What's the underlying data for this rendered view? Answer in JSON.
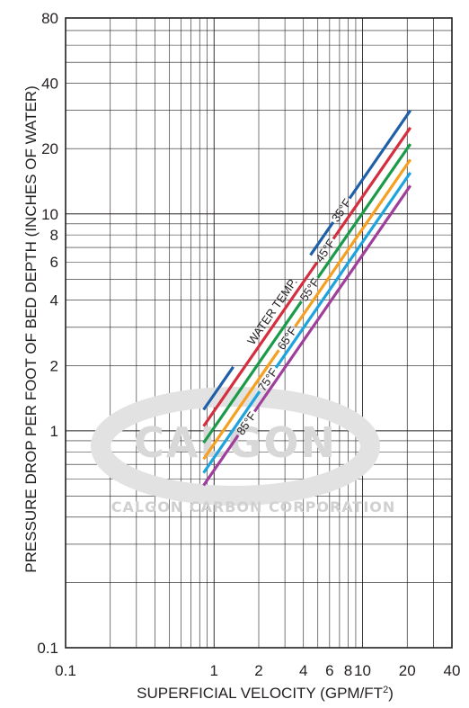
{
  "chart_data": {
    "type": "line",
    "title": "",
    "xlabel_main": "SUPERFICIAL VELOCITY (GPM/FT",
    "xlabel_sup": "2",
    "xlabel_close": ")",
    "ylabel": "PRESSURE DROP PER FOOT OF BED DEPTH (INCHES OF WATER)",
    "x_scale": "log",
    "y_scale": "log",
    "xlim": [
      0.1,
      40
    ],
    "ylim": [
      0.1,
      80
    ],
    "x_tick_labels": [
      {
        "value": 0.1,
        "label": "0.1"
      },
      {
        "value": 1,
        "label": "1"
      },
      {
        "value": 2,
        "label": "2"
      },
      {
        "value": 4,
        "label": "4"
      },
      {
        "value": 6,
        "label": "6"
      },
      {
        "value": 8,
        "label": "8"
      },
      {
        "value": 10,
        "label": "10"
      },
      {
        "value": 20,
        "label": "20"
      },
      {
        "value": 40,
        "label": "40"
      }
    ],
    "y_tick_labels": [
      {
        "value": 0.1,
        "label": "0.1"
      },
      {
        "value": 1,
        "label": "1"
      },
      {
        "value": 2,
        "label": "2"
      },
      {
        "value": 4,
        "label": "4"
      },
      {
        "value": 6,
        "label": "6"
      },
      {
        "value": 8,
        "label": "8"
      },
      {
        "value": 10,
        "label": "10"
      },
      {
        "value": 20,
        "label": "20"
      },
      {
        "value": 40,
        "label": "40"
      },
      {
        "value": 80,
        "label": "80"
      }
    ],
    "grid": true,
    "annotation": "WATER TEMP.",
    "series": [
      {
        "name": "35°F",
        "color": "#1f5fa8",
        "x": [
          0.85,
          21
        ],
        "y": [
          1.25,
          30
        ]
      },
      {
        "name": "45°F",
        "color": "#d42e3f",
        "x": [
          0.85,
          21
        ],
        "y": [
          1.05,
          25
        ]
      },
      {
        "name": "55°F",
        "color": "#1b9b4a",
        "x": [
          0.85,
          21
        ],
        "y": [
          0.88,
          21
        ]
      },
      {
        "name": "65°F",
        "color": "#f5a020",
        "x": [
          0.85,
          21
        ],
        "y": [
          0.74,
          17.8
        ]
      },
      {
        "name": "75°F",
        "color": "#1ea3dc",
        "x": [
          0.85,
          21
        ],
        "y": [
          0.64,
          15.5
        ]
      },
      {
        "name": "85°F",
        "color": "#9e3f9c",
        "x": [
          0.85,
          21
        ],
        "y": [
          0.56,
          13.5
        ]
      }
    ]
  },
  "watermark": {
    "brand": "CALGON",
    "company": "CALGON CARBON CORPORATION"
  }
}
